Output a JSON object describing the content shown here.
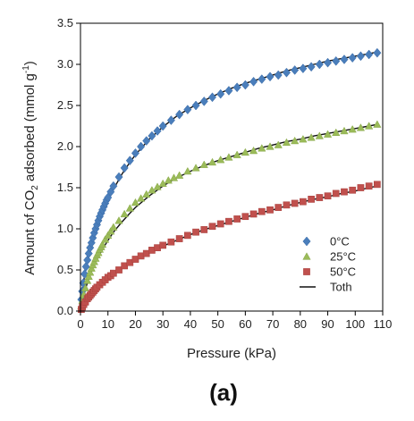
{
  "chart_data": {
    "type": "scatter",
    "panel_label": "(a)",
    "xlabel": "Pressure (kPa)",
    "ylabel": {
      "prefix": "Amount of CO",
      "sub": "2",
      "mid": " adsorbed (mmol g",
      "sup": "-1",
      "suffix": ")"
    },
    "xlim": [
      0,
      110
    ],
    "ylim": [
      0,
      3.5
    ],
    "xticks": [
      "0",
      "10",
      "20",
      "30",
      "40",
      "50",
      "60",
      "70",
      "80",
      "90",
      "100",
      "110"
    ],
    "yticks": [
      "0.0",
      "0.5",
      "1.0",
      "1.5",
      "2.0",
      "2.5",
      "3.0",
      "3.5"
    ],
    "grid": false,
    "legend_position": "bottom-right",
    "series": [
      {
        "name": "0°C",
        "marker": "diamond",
        "color": "#4a7ebb",
        "x": [
          0.3,
          0.6,
          1,
          1.5,
          2,
          2.5,
          3,
          3.5,
          4,
          4.5,
          5,
          5.5,
          6,
          6.5,
          7,
          7.5,
          8,
          8.5,
          9,
          9.5,
          10,
          11,
          12,
          14,
          16,
          18,
          20,
          22,
          24,
          26,
          28,
          30,
          33,
          36,
          39,
          42,
          45,
          48,
          51,
          54,
          57,
          60,
          63,
          66,
          69,
          72,
          75,
          78,
          81,
          84,
          87,
          90,
          93,
          96,
          99,
          102,
          105,
          108
        ],
        "y": [
          0.14,
          0.24,
          0.34,
          0.45,
          0.54,
          0.62,
          0.7,
          0.77,
          0.83,
          0.89,
          0.95,
          1.0,
          1.05,
          1.1,
          1.15,
          1.19,
          1.23,
          1.27,
          1.31,
          1.35,
          1.38,
          1.45,
          1.52,
          1.63,
          1.74,
          1.83,
          1.92,
          2.0,
          2.07,
          2.13,
          2.19,
          2.25,
          2.32,
          2.39,
          2.45,
          2.5,
          2.55,
          2.6,
          2.64,
          2.68,
          2.72,
          2.75,
          2.79,
          2.82,
          2.85,
          2.87,
          2.9,
          2.93,
          2.95,
          2.97,
          3.0,
          3.02,
          3.04,
          3.06,
          3.08,
          3.1,
          3.12,
          3.14
        ]
      },
      {
        "name": "25°C",
        "marker": "triangle",
        "color": "#9bbb59",
        "x": [
          0.3,
          0.7,
          1.2,
          1.8,
          2.5,
          3,
          3.5,
          4,
          4.5,
          5,
          5.5,
          6,
          6.5,
          7,
          7.5,
          8,
          9,
          10,
          11,
          12,
          14,
          16,
          18,
          20,
          22,
          24,
          26,
          28,
          30,
          32,
          34,
          36,
          39,
          42,
          45,
          48,
          51,
          54,
          57,
          60,
          63,
          66,
          69,
          72,
          75,
          78,
          81,
          84,
          87,
          90,
          93,
          96,
          99,
          102,
          105,
          108
        ],
        "y": [
          0.06,
          0.13,
          0.2,
          0.28,
          0.37,
          0.42,
          0.47,
          0.52,
          0.56,
          0.6,
          0.64,
          0.68,
          0.71,
          0.75,
          0.78,
          0.81,
          0.87,
          0.92,
          0.97,
          1.02,
          1.1,
          1.18,
          1.25,
          1.32,
          1.37,
          1.42,
          1.47,
          1.51,
          1.55,
          1.59,
          1.62,
          1.65,
          1.7,
          1.74,
          1.78,
          1.81,
          1.84,
          1.87,
          1.9,
          1.93,
          1.95,
          1.98,
          2.0,
          2.02,
          2.05,
          2.07,
          2.09,
          2.11,
          2.13,
          2.15,
          2.17,
          2.19,
          2.21,
          2.23,
          2.25,
          2.27
        ]
      },
      {
        "name": "50°C",
        "marker": "square",
        "color": "#c0504d",
        "x": [
          0.3,
          0.7,
          1.2,
          1.8,
          2.5,
          3,
          3.5,
          4,
          4.5,
          5,
          5.5,
          6,
          7,
          8,
          9,
          10,
          11,
          12,
          14,
          16,
          18,
          20,
          22,
          24,
          26,
          28,
          30,
          33,
          36,
          39,
          42,
          45,
          48,
          51,
          54,
          57,
          60,
          63,
          66,
          69,
          72,
          75,
          78,
          81,
          84,
          87,
          90,
          93,
          96,
          99,
          102,
          105,
          108
        ],
        "y": [
          0.02,
          0.05,
          0.08,
          0.11,
          0.15,
          0.17,
          0.19,
          0.21,
          0.23,
          0.25,
          0.27,
          0.29,
          0.32,
          0.35,
          0.38,
          0.41,
          0.43,
          0.46,
          0.5,
          0.55,
          0.59,
          0.63,
          0.67,
          0.7,
          0.74,
          0.77,
          0.8,
          0.84,
          0.88,
          0.92,
          0.96,
          0.99,
          1.03,
          1.06,
          1.09,
          1.12,
          1.15,
          1.18,
          1.21,
          1.23,
          1.26,
          1.29,
          1.31,
          1.33,
          1.36,
          1.38,
          1.4,
          1.43,
          1.45,
          1.47,
          1.5,
          1.52,
          1.54
        ]
      },
      {
        "name": "Toth",
        "marker": "line",
        "color": "#111111",
        "curves": [
          {
            "x": [
              0,
              0.5,
              1,
              2,
              3,
              4,
              5,
              6,
              8,
              10,
              12,
              15,
              18,
              20,
              25,
              30,
              35,
              40,
              45,
              50,
              55,
              60,
              65,
              70,
              75,
              80,
              85,
              90,
              95,
              100,
              105,
              108
            ],
            "y": [
              0,
              0.2,
              0.33,
              0.52,
              0.67,
              0.8,
              0.91,
              1.01,
              1.19,
              1.34,
              1.48,
              1.66,
              1.81,
              1.9,
              2.09,
              2.24,
              2.37,
              2.47,
              2.56,
              2.64,
              2.71,
              2.77,
              2.82,
              2.87,
              2.92,
              2.96,
              3.0,
              3.04,
              3.07,
              3.1,
              3.13,
              3.15
            ]
          },
          {
            "x": [
              0,
              0.5,
              1,
              2,
              3,
              4,
              5,
              6,
              8,
              10,
              12,
              15,
              18,
              20,
              25,
              30,
              35,
              40,
              45,
              50,
              55,
              60,
              65,
              70,
              75,
              80,
              85,
              90,
              95,
              100,
              105,
              108
            ],
            "y": [
              0,
              0.09,
              0.16,
              0.29,
              0.39,
              0.48,
              0.56,
              0.63,
              0.75,
              0.86,
              0.96,
              1.08,
              1.19,
              1.26,
              1.4,
              1.52,
              1.62,
              1.7,
              1.77,
              1.83,
              1.88,
              1.93,
              1.98,
              2.02,
              2.06,
              2.09,
              2.13,
              2.16,
              2.19,
              2.22,
              2.25,
              2.27
            ]
          },
          {
            "x": [
              0,
              0.5,
              1,
              2,
              3,
              4,
              5,
              6,
              8,
              10,
              12,
              15,
              18,
              20,
              25,
              30,
              35,
              40,
              45,
              50,
              55,
              60,
              65,
              70,
              75,
              80,
              85,
              90,
              95,
              100,
              105,
              108
            ],
            "y": [
              0,
              0.03,
              0.06,
              0.11,
              0.16,
              0.2,
              0.24,
              0.28,
              0.34,
              0.4,
              0.45,
              0.52,
              0.58,
              0.62,
              0.71,
              0.79,
              0.86,
              0.93,
              0.99,
              1.04,
              1.09,
              1.14,
              1.19,
              1.23,
              1.28,
              1.32,
              1.36,
              1.39,
              1.43,
              1.46,
              1.5,
              1.52
            ]
          }
        ]
      }
    ]
  }
}
